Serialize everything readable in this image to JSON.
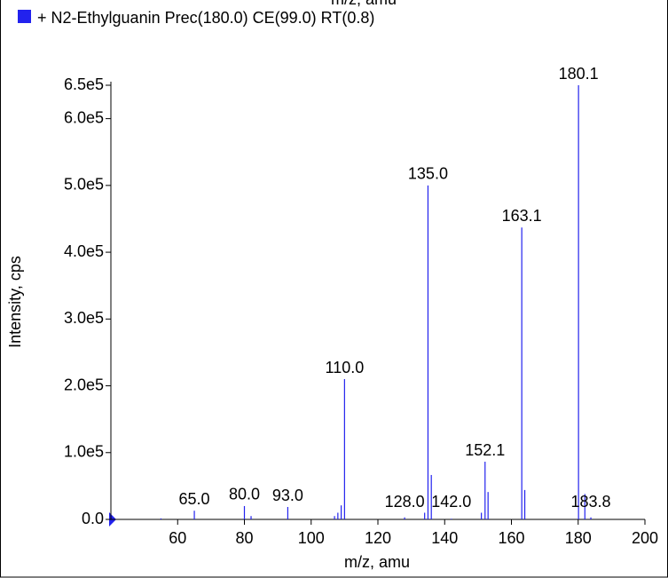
{
  "chart_data": {
    "type": "stick",
    "top_label": "m/z, amu",
    "title": "+ N2-Ethylguanin Prec(180.0) CE(99.0) RT(0.8)",
    "xlabel": "m/z, amu",
    "ylabel": "Intensity, cps",
    "color": "#2222ee",
    "xlim": [
      40,
      200
    ],
    "xticks": [
      60,
      80,
      100,
      120,
      140,
      160,
      180,
      200
    ],
    "ylim": [
      0,
      650000
    ],
    "yticks": [
      {
        "value": 0,
        "label": "0.0"
      },
      {
        "value": 100000,
        "label": "1.0e5"
      },
      {
        "value": 200000,
        "label": "2.0e5"
      },
      {
        "value": 300000,
        "label": "3.0e5"
      },
      {
        "value": 400000,
        "label": "4.0e5"
      },
      {
        "value": 500000,
        "label": "5.0e5"
      },
      {
        "value": 600000,
        "label": "6.0e5"
      },
      {
        "value": 650000,
        "label": "6.5e5"
      }
    ],
    "x": [
      55,
      65,
      80,
      82,
      93,
      107,
      108,
      109,
      110,
      128,
      134,
      135,
      136,
      142,
      151,
      152.1,
      153,
      163.1,
      164,
      180.1,
      182,
      183.8
    ],
    "values": [
      1500,
      13000,
      20000,
      5000,
      18600,
      5000,
      10000,
      21000,
      210000,
      3000,
      10000,
      500000,
      66500,
      1000,
      10000,
      86400,
      41000,
      437000,
      44000,
      650000,
      38000,
      3000
    ],
    "peak_labels": [
      null,
      "65.0",
      "80.0",
      null,
      "93.0",
      null,
      null,
      null,
      "110.0",
      "128.0",
      null,
      "135.0",
      null,
      "142.0",
      null,
      "152.1",
      null,
      "163.1",
      null,
      "180.1",
      null,
      "183.8"
    ]
  }
}
